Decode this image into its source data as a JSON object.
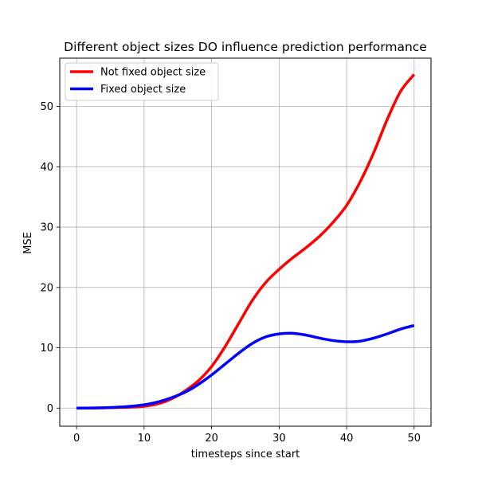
{
  "chart_data": {
    "type": "line",
    "title": "Different object sizes DO influence prediction performance",
    "xlabel": "timesteps since start",
    "ylabel": "MSE",
    "xlim": [
      -2.5,
      52.5
    ],
    "ylim": [
      -3,
      58
    ],
    "xticks": [
      0,
      10,
      20,
      30,
      40,
      50
    ],
    "yticks": [
      0,
      10,
      20,
      30,
      40,
      50
    ],
    "grid": true,
    "legend_position": "top-left",
    "series": [
      {
        "name": "Not fixed object size",
        "color": "#ff0000",
        "x": [
          0,
          2,
          4,
          6,
          8,
          10,
          12,
          14,
          16,
          18,
          20,
          22,
          24,
          26,
          28,
          30,
          32,
          34,
          36,
          38,
          40,
          42,
          44,
          46,
          48,
          50
        ],
        "y": [
          0,
          0,
          0.05,
          0.1,
          0.15,
          0.3,
          0.7,
          1.5,
          2.8,
          4.5,
          6.9,
          10.2,
          14.0,
          17.8,
          20.8,
          23.0,
          24.9,
          26.6,
          28.5,
          30.8,
          33.6,
          37.5,
          42.3,
          47.8,
          52.5,
          55.3
        ]
      },
      {
        "name": "Fixed object size",
        "color": "#0000ff",
        "x": [
          0,
          2,
          4,
          6,
          8,
          10,
          12,
          14,
          16,
          18,
          20,
          22,
          24,
          26,
          28,
          30,
          32,
          34,
          36,
          38,
          40,
          42,
          44,
          46,
          48,
          50
        ],
        "y": [
          0,
          0.02,
          0.06,
          0.15,
          0.3,
          0.55,
          1.0,
          1.7,
          2.6,
          3.9,
          5.5,
          7.3,
          9.1,
          10.7,
          11.8,
          12.3,
          12.4,
          12.1,
          11.6,
          11.2,
          11.0,
          11.1,
          11.6,
          12.3,
          13.1,
          13.7
        ]
      }
    ]
  }
}
